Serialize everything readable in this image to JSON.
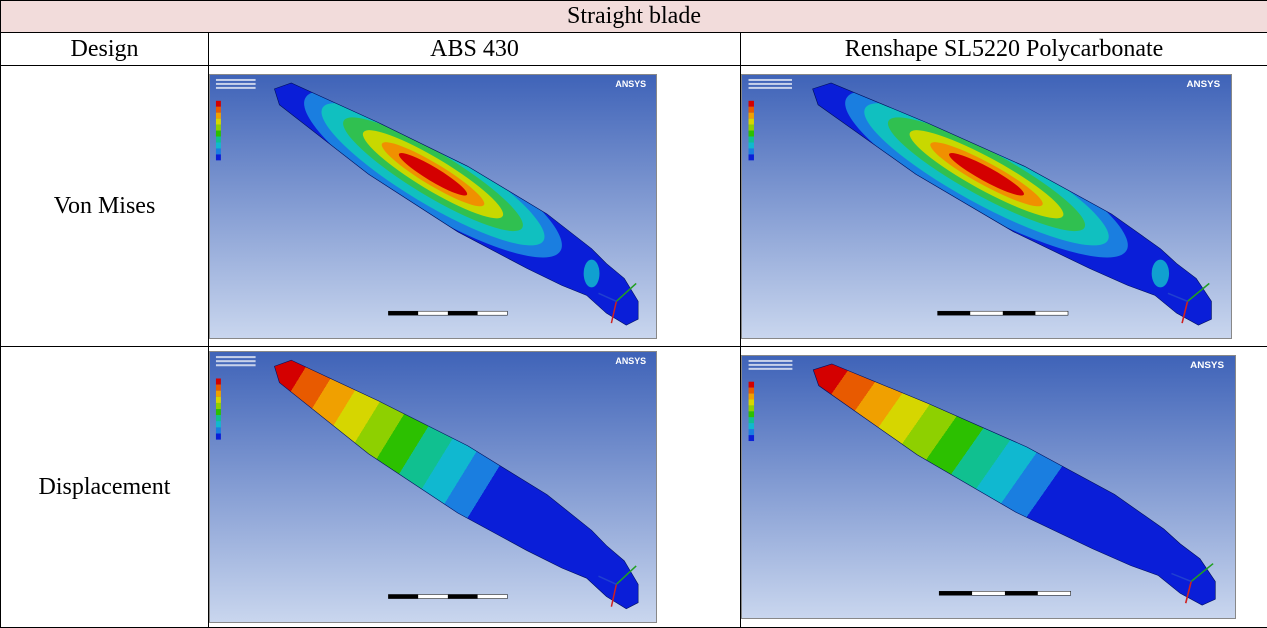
{
  "table": {
    "title": "Straight blade",
    "header": [
      "Design",
      "ABS 430",
      "Renshape SL5220 Polycarbonate"
    ],
    "rows": [
      [
        "Von Mises"
      ],
      [
        "Displacement"
      ]
    ],
    "logo": "ANSYS"
  }
}
